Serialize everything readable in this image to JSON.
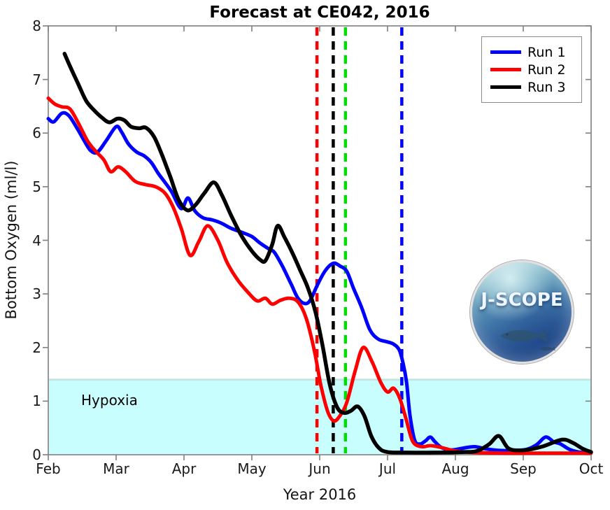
{
  "logo": {
    "text": "J-SCOPE"
  },
  "chart_data": {
    "type": "line",
    "title": "Forecast at CE042, 2016",
    "xlabel": "Year 2016",
    "ylabel": "Bottom Oxygen (ml/l)",
    "layout": {
      "axis_color": "#7f7f7f",
      "tick_text_color": "#1a1a1a",
      "grid": false,
      "legend_position": "top-right"
    },
    "x_axis": {
      "range": [
        2,
        10
      ],
      "tick_positions": [
        2,
        3,
        4,
        5,
        6,
        7,
        8,
        9,
        10
      ],
      "tick_labels": [
        "Feb",
        "Mar",
        "Apr",
        "May",
        "Jun",
        "Jul",
        "Aug",
        "Sep",
        "Oct"
      ]
    },
    "y_axis": {
      "range": [
        0,
        8
      ],
      "tick_positions": [
        0,
        1,
        2,
        3,
        4,
        5,
        6,
        7,
        8
      ],
      "tick_labels": [
        "0",
        "1",
        "2",
        "3",
        "4",
        "5",
        "6",
        "7",
        "8"
      ]
    },
    "legend": {
      "entries": [
        {
          "label": "Run 1",
          "color": "#0000ff"
        },
        {
          "label": "Run 2",
          "color": "#ff0000"
        },
        {
          "label": "Run 3",
          "color": "#000000"
        }
      ]
    },
    "hypoxia": {
      "label": "Hypoxia",
      "threshold": 1.4,
      "fill": "#c9feff",
      "edge": "#c3e6e2"
    },
    "vlines": [
      {
        "name": "dashed-line-red",
        "x": 5.96,
        "color": "#ff0000",
        "style": "dashed"
      },
      {
        "name": "dashed-line-black",
        "x": 6.2,
        "color": "#000000",
        "style": "dashed"
      },
      {
        "name": "dashed-line-green",
        "x": 6.38,
        "color": "#00dd00",
        "style": "dashed"
      },
      {
        "name": "dashed-line-blue",
        "x": 7.21,
        "color": "#0000ff",
        "style": "dashed"
      }
    ],
    "series": [
      {
        "name": "Run 1",
        "color": "#0000ff",
        "width": 5,
        "points": [
          [
            2.0,
            6.27
          ],
          [
            2.08,
            6.21
          ],
          [
            2.2,
            6.37
          ],
          [
            2.3,
            6.33
          ],
          [
            2.42,
            6.1
          ],
          [
            2.52,
            5.88
          ],
          [
            2.62,
            5.68
          ],
          [
            2.72,
            5.64
          ],
          [
            2.85,
            5.85
          ],
          [
            3.0,
            6.12
          ],
          [
            3.08,
            6.02
          ],
          [
            3.18,
            5.8
          ],
          [
            3.3,
            5.65
          ],
          [
            3.42,
            5.57
          ],
          [
            3.52,
            5.45
          ],
          [
            3.62,
            5.25
          ],
          [
            3.72,
            5.08
          ],
          [
            3.82,
            4.9
          ],
          [
            3.92,
            4.65
          ],
          [
            3.98,
            4.6
          ],
          [
            4.06,
            4.79
          ],
          [
            4.16,
            4.55
          ],
          [
            4.28,
            4.42
          ],
          [
            4.42,
            4.38
          ],
          [
            4.55,
            4.32
          ],
          [
            4.7,
            4.22
          ],
          [
            4.85,
            4.15
          ],
          [
            5.0,
            4.07
          ],
          [
            5.12,
            3.95
          ],
          [
            5.25,
            3.84
          ],
          [
            5.33,
            3.78
          ],
          [
            5.45,
            3.52
          ],
          [
            5.58,
            3.18
          ],
          [
            5.68,
            2.92
          ],
          [
            5.78,
            2.82
          ],
          [
            5.86,
            2.88
          ],
          [
            5.96,
            3.15
          ],
          [
            6.08,
            3.43
          ],
          [
            6.2,
            3.57
          ],
          [
            6.3,
            3.52
          ],
          [
            6.4,
            3.42
          ],
          [
            6.5,
            3.1
          ],
          [
            6.62,
            2.74
          ],
          [
            6.74,
            2.33
          ],
          [
            6.86,
            2.16
          ],
          [
            6.98,
            2.11
          ],
          [
            7.08,
            2.07
          ],
          [
            7.17,
            1.96
          ],
          [
            7.23,
            1.7
          ],
          [
            7.28,
            1.35
          ],
          [
            7.33,
            0.74
          ],
          [
            7.4,
            0.27
          ],
          [
            7.48,
            0.2
          ],
          [
            7.56,
            0.26
          ],
          [
            7.63,
            0.33
          ],
          [
            7.7,
            0.24
          ],
          [
            7.8,
            0.13
          ],
          [
            7.95,
            0.09
          ],
          [
            8.1,
            0.12
          ],
          [
            8.28,
            0.15
          ],
          [
            8.45,
            0.11
          ],
          [
            8.65,
            0.08
          ],
          [
            8.85,
            0.08
          ],
          [
            9.05,
            0.1
          ],
          [
            9.2,
            0.19
          ],
          [
            9.33,
            0.33
          ],
          [
            9.45,
            0.24
          ],
          [
            9.55,
            0.2
          ],
          [
            9.68,
            0.1
          ],
          [
            9.82,
            0.05
          ],
          [
            10.0,
            0.04
          ]
        ]
      },
      {
        "name": "Run 2",
        "color": "#ff0000",
        "width": 5,
        "points": [
          [
            2.0,
            6.65
          ],
          [
            2.1,
            6.54
          ],
          [
            2.2,
            6.49
          ],
          [
            2.32,
            6.45
          ],
          [
            2.45,
            6.17
          ],
          [
            2.58,
            5.85
          ],
          [
            2.7,
            5.66
          ],
          [
            2.82,
            5.5
          ],
          [
            2.92,
            5.28
          ],
          [
            3.03,
            5.37
          ],
          [
            3.14,
            5.28
          ],
          [
            3.28,
            5.1
          ],
          [
            3.43,
            5.04
          ],
          [
            3.58,
            5.0
          ],
          [
            3.72,
            4.88
          ],
          [
            3.84,
            4.62
          ],
          [
            3.96,
            4.22
          ],
          [
            4.09,
            3.72
          ],
          [
            4.22,
            3.98
          ],
          [
            4.35,
            4.27
          ],
          [
            4.5,
            4.0
          ],
          [
            4.63,
            3.6
          ],
          [
            4.78,
            3.28
          ],
          [
            4.95,
            3.02
          ],
          [
            5.08,
            2.87
          ],
          [
            5.2,
            2.92
          ],
          [
            5.3,
            2.81
          ],
          [
            5.42,
            2.88
          ],
          [
            5.55,
            2.92
          ],
          [
            5.68,
            2.85
          ],
          [
            5.8,
            2.55
          ],
          [
            5.92,
            1.95
          ],
          [
            6.02,
            1.28
          ],
          [
            6.12,
            0.8
          ],
          [
            6.21,
            0.63
          ],
          [
            6.3,
            0.73
          ],
          [
            6.4,
            0.98
          ],
          [
            6.52,
            1.55
          ],
          [
            6.64,
            2.0
          ],
          [
            6.77,
            1.74
          ],
          [
            6.9,
            1.35
          ],
          [
            7.0,
            1.17
          ],
          [
            7.09,
            1.24
          ],
          [
            7.18,
            1.05
          ],
          [
            7.27,
            0.68
          ],
          [
            7.37,
            0.25
          ],
          [
            7.5,
            0.15
          ],
          [
            7.63,
            0.17
          ],
          [
            7.78,
            0.14
          ],
          [
            8.0,
            0.07
          ],
          [
            8.3,
            0.04
          ],
          [
            8.7,
            0.03
          ],
          [
            9.1,
            0.03
          ],
          [
            9.5,
            0.03
          ],
          [
            10.0,
            0.03
          ]
        ]
      },
      {
        "name": "Run 3",
        "color": "#000000",
        "width": 5.5,
        "points": [
          [
            2.24,
            7.48
          ],
          [
            2.33,
            7.22
          ],
          [
            2.44,
            6.92
          ],
          [
            2.56,
            6.6
          ],
          [
            2.68,
            6.42
          ],
          [
            2.79,
            6.29
          ],
          [
            2.9,
            6.2
          ],
          [
            3.02,
            6.27
          ],
          [
            3.12,
            6.24
          ],
          [
            3.22,
            6.12
          ],
          [
            3.34,
            6.09
          ],
          [
            3.44,
            6.1
          ],
          [
            3.56,
            5.93
          ],
          [
            3.68,
            5.58
          ],
          [
            3.8,
            5.18
          ],
          [
            3.92,
            4.76
          ],
          [
            4.05,
            4.56
          ],
          [
            4.17,
            4.66
          ],
          [
            4.3,
            4.88
          ],
          [
            4.44,
            5.08
          ],
          [
            4.56,
            4.84
          ],
          [
            4.7,
            4.45
          ],
          [
            4.85,
            4.08
          ],
          [
            5.0,
            3.8
          ],
          [
            5.12,
            3.64
          ],
          [
            5.2,
            3.62
          ],
          [
            5.3,
            3.92
          ],
          [
            5.38,
            4.27
          ],
          [
            5.48,
            4.06
          ],
          [
            5.6,
            3.76
          ],
          [
            5.72,
            3.42
          ],
          [
            5.83,
            3.1
          ],
          [
            5.94,
            2.65
          ],
          [
            6.04,
            2.05
          ],
          [
            6.15,
            1.3
          ],
          [
            6.26,
            0.88
          ],
          [
            6.36,
            0.78
          ],
          [
            6.46,
            0.82
          ],
          [
            6.56,
            0.9
          ],
          [
            6.66,
            0.72
          ],
          [
            6.76,
            0.35
          ],
          [
            6.87,
            0.13
          ],
          [
            7.0,
            0.05
          ],
          [
            7.3,
            0.04
          ],
          [
            7.7,
            0.04
          ],
          [
            8.1,
            0.05
          ],
          [
            8.32,
            0.07
          ],
          [
            8.5,
            0.2
          ],
          [
            8.64,
            0.35
          ],
          [
            8.78,
            0.12
          ],
          [
            8.95,
            0.08
          ],
          [
            9.1,
            0.1
          ],
          [
            9.3,
            0.16
          ],
          [
            9.57,
            0.28
          ],
          [
            9.72,
            0.23
          ],
          [
            9.88,
            0.11
          ],
          [
            10.0,
            0.05
          ]
        ]
      }
    ]
  }
}
